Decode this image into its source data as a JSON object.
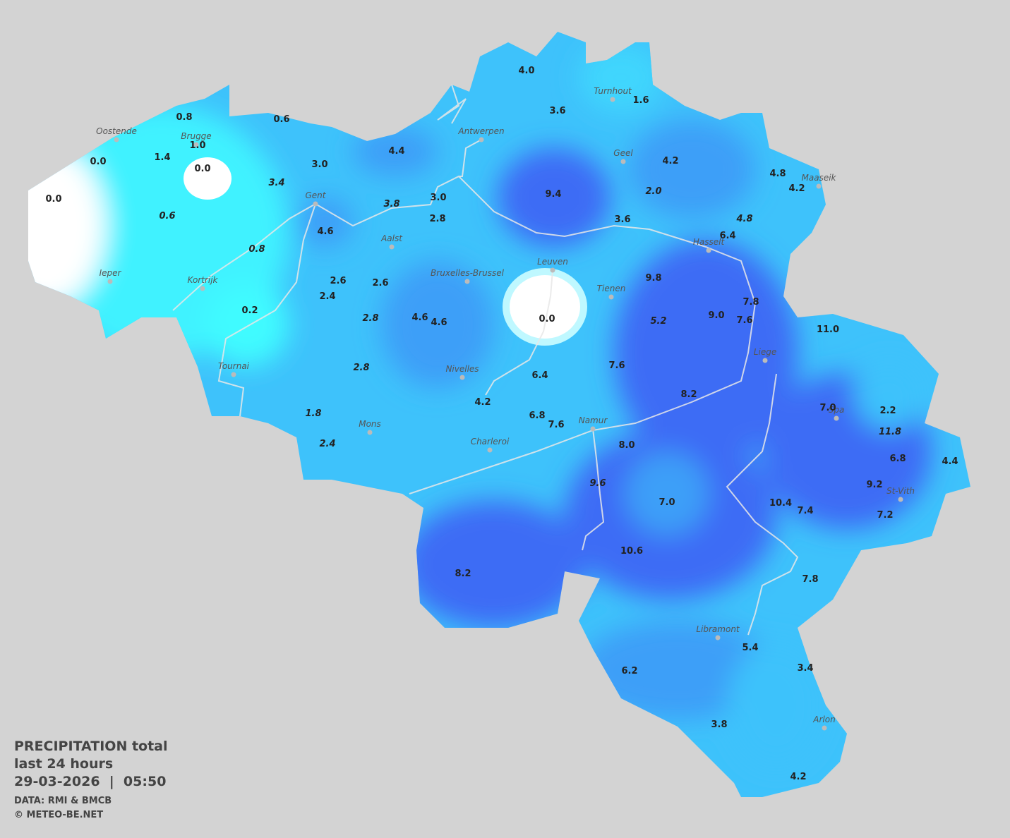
{
  "map": {
    "cities": [
      "Oostende",
      "Brugge",
      "Antwerpen",
      "Turnhout",
      "Geel",
      "Maaseik",
      "Gent",
      "Aalst",
      "Ieper",
      "Kortrijk",
      "Hasselt",
      "Leuven",
      "Bruxelles-Brussel",
      "Tienen",
      "Liege",
      "Tournai",
      "Nivelles",
      "Spa",
      "Mons",
      "Namur",
      "Charleroi",
      "St-Vith",
      "Libramont",
      "Arlon"
    ],
    "stations": [
      {
        "value": "0.8"
      },
      {
        "value": "0.6"
      },
      {
        "value": "0.0"
      },
      {
        "value": "1.4"
      },
      {
        "value": "1.0"
      },
      {
        "value": "0.0"
      },
      {
        "value": "0.0"
      },
      {
        "value": "0.6",
        "italic": true
      },
      {
        "value": "3.0"
      },
      {
        "value": "3.4",
        "italic": true
      },
      {
        "value": "4.4"
      },
      {
        "value": "4.0"
      },
      {
        "value": "3.6"
      },
      {
        "value": "1.6"
      },
      {
        "value": "4.2"
      },
      {
        "value": "9.4"
      },
      {
        "value": "2.0",
        "italic": true
      },
      {
        "value": "4.8"
      },
      {
        "value": "4.2"
      },
      {
        "value": "3.0"
      },
      {
        "value": "3.8",
        "italic": true
      },
      {
        "value": "2.8"
      },
      {
        "value": "4.6"
      },
      {
        "value": "0.8",
        "italic": true
      },
      {
        "value": "3.6"
      },
      {
        "value": "4.8",
        "italic": true
      },
      {
        "value": "6.4"
      },
      {
        "value": "2.6"
      },
      {
        "value": "2.6"
      },
      {
        "value": "2.4"
      },
      {
        "value": "0.2"
      },
      {
        "value": "9.8"
      },
      {
        "value": "7.8"
      },
      {
        "value": "9.0"
      },
      {
        "value": "7.6"
      },
      {
        "value": "5.2",
        "italic": true
      },
      {
        "value": "2.8",
        "italic": true
      },
      {
        "value": "4.6"
      },
      {
        "value": "4.6"
      },
      {
        "value": "0.0"
      },
      {
        "value": "11.0"
      },
      {
        "value": "2.8",
        "italic": true
      },
      {
        "value": "7.6"
      },
      {
        "value": "6.4"
      },
      {
        "value": "4.2"
      },
      {
        "value": "8.2"
      },
      {
        "value": "7.0"
      },
      {
        "value": "2.2"
      },
      {
        "value": "1.8",
        "italic": true
      },
      {
        "value": "6.8"
      },
      {
        "value": "7.6"
      },
      {
        "value": "11.8",
        "italic": true
      },
      {
        "value": "2.4",
        "italic": true
      },
      {
        "value": "8.0"
      },
      {
        "value": "6.8"
      },
      {
        "value": "4.4"
      },
      {
        "value": "9.6",
        "italic": true
      },
      {
        "value": "9.2"
      },
      {
        "value": "7.0"
      },
      {
        "value": "10.4"
      },
      {
        "value": "7.4"
      },
      {
        "value": "7.2"
      },
      {
        "value": "10.6"
      },
      {
        "value": "8.2"
      },
      {
        "value": "7.8"
      },
      {
        "value": "5.4"
      },
      {
        "value": "3.4"
      },
      {
        "value": "6.2"
      },
      {
        "value": "3.8"
      },
      {
        "value": "4.2"
      }
    ],
    "caption": {
      "title": "PRECIPITATION total",
      "period": "last 24 hours",
      "datetime": "29-03-2026  |  05:50",
      "source": "DATA: RMI & BMCB",
      "credit": "© METEO-BE.NET"
    }
  }
}
